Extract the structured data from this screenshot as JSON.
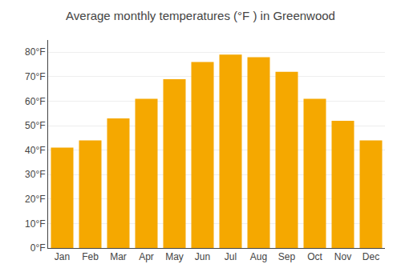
{
  "chart_data": {
    "type": "bar",
    "title": "Average monthly temperatures (°F ) in Greenwood",
    "categories": [
      "Jan",
      "Feb",
      "Mar",
      "Apr",
      "May",
      "Jun",
      "Jul",
      "Aug",
      "Sep",
      "Oct",
      "Nov",
      "Dec"
    ],
    "values": [
      41,
      44,
      53,
      61,
      69,
      76,
      79,
      78,
      72,
      61,
      52,
      44
    ],
    "color": "#F5A800",
    "ylim": [
      0,
      85
    ],
    "yticks": [
      {
        "value": 0,
        "label": "0°F"
      },
      {
        "value": 10,
        "label": "10°F"
      },
      {
        "value": 20,
        "label": "20°F"
      },
      {
        "value": 30,
        "label": "30°F"
      },
      {
        "value": 40,
        "label": "40°F"
      },
      {
        "value": 50,
        "label": "50°F"
      },
      {
        "value": 60,
        "label": "60°F"
      },
      {
        "value": 70,
        "label": "70°F"
      },
      {
        "value": 80,
        "label": "80°F"
      }
    ],
    "grid": true
  }
}
